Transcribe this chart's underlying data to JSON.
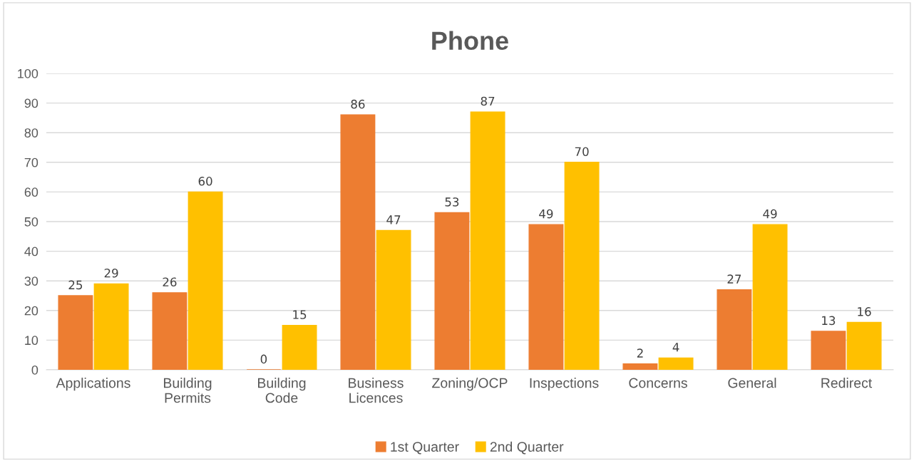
{
  "chart_data": {
    "type": "bar",
    "title": "Phone",
    "categories": [
      "Applications",
      "Building\nPermits",
      "Building\nCode",
      "Business\nLicences",
      "Zoning/OCP",
      "Inspections",
      "Concerns",
      "General",
      "Redirect"
    ],
    "series": [
      {
        "name": "1st Quarter",
        "color": "#ed7d31",
        "values": [
          25,
          26,
          0,
          86,
          53,
          49,
          2,
          27,
          13
        ]
      },
      {
        "name": "2nd Quarter",
        "color": "#ffc000",
        "values": [
          29,
          60,
          15,
          47,
          87,
          70,
          4,
          49,
          16
        ]
      }
    ],
    "ylim": [
      0,
      100
    ],
    "yticks": [
      0,
      10,
      20,
      30,
      40,
      50,
      60,
      70,
      80,
      90,
      100
    ],
    "grid": "y",
    "legend": "bottom",
    "data_labels": true
  }
}
